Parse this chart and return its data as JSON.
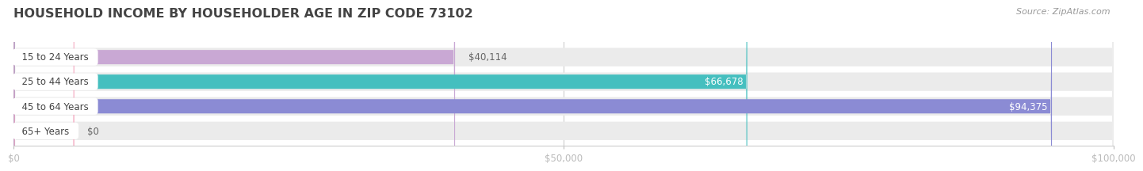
{
  "title": "HOUSEHOLD INCOME BY HOUSEHOLDER AGE IN ZIP CODE 73102",
  "source": "Source: ZipAtlas.com",
  "categories": [
    "15 to 24 Years",
    "25 to 44 Years",
    "45 to 64 Years",
    "65+ Years"
  ],
  "values": [
    40114,
    66678,
    94375,
    0
  ],
  "bar_colors": [
    "#c9a8d4",
    "#45bfbf",
    "#8b8bd4",
    "#f4a8c0"
  ],
  "bar_bg_color": "#ebebeb",
  "label_texts": [
    "$40,114",
    "$66,678",
    "$94,375",
    "$0"
  ],
  "label_inside": [
    false,
    true,
    true,
    false
  ],
  "xlim": [
    0,
    100000
  ],
  "xtick_values": [
    0,
    50000,
    100000
  ],
  "xtick_labels": [
    "$0",
    "$50,000",
    "$100,000"
  ],
  "bg_color": "#ffffff",
  "title_fontsize": 11.5,
  "source_fontsize": 8,
  "label_fontsize": 8.5,
  "category_fontsize": 8.5,
  "tick_fontsize": 8.5,
  "stub_value": 5500
}
